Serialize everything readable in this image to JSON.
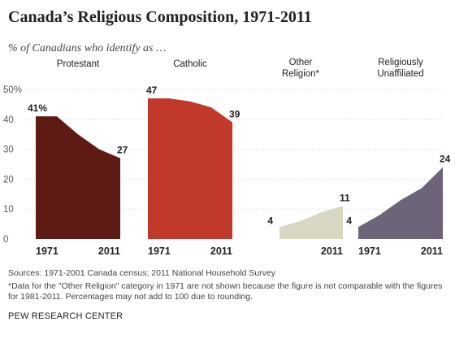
{
  "title": "Canada’s Religious Composition, 1971-2011",
  "subtitle": "% of Canadians who identify as …",
  "chart_data": {
    "type": "area",
    "y_axis": {
      "ylim": [
        0,
        50
      ],
      "tick_labels": [
        "50%",
        "40",
        "30",
        "20",
        "10",
        "0"
      ],
      "tick_values": [
        50,
        40,
        30,
        20,
        10,
        0
      ]
    },
    "x": [
      1971,
      1981,
      1991,
      2001,
      2011
    ],
    "panels": [
      {
        "label": "Protestant",
        "label_lines": [
          "Protestant"
        ],
        "x": [
          1971,
          1981,
          1991,
          2001,
          2011
        ],
        "values": [
          41,
          41,
          35,
          30,
          27
        ],
        "color": "#5e1a14",
        "start_label": "41%",
        "end_label": "27",
        "x_start_label": "1971",
        "x_end_label": "2011"
      },
      {
        "label": "Catholic",
        "label_lines": [
          "Catholic"
        ],
        "x": [
          1971,
          1981,
          1991,
          2001,
          2011
        ],
        "values": [
          47,
          47,
          46,
          44,
          39
        ],
        "color": "#c0392b",
        "start_label": "47",
        "end_label": "39",
        "x_start_label": "1971",
        "x_end_label": "2011"
      },
      {
        "label": "Other Religion*",
        "label_lines": [
          "Other",
          "Religion*"
        ],
        "x": [
          1981,
          1991,
          2001,
          2011
        ],
        "values": [
          4,
          6,
          9,
          11
        ],
        "color": "#d9d6c3",
        "start_label": "4",
        "end_label": "11",
        "x_start_label": "",
        "x_end_label": "2011"
      },
      {
        "label": "Religiously Unaffiliated",
        "label_lines": [
          "Religiously",
          "Unaffiliated"
        ],
        "x": [
          1971,
          1981,
          1991,
          2001,
          2011
        ],
        "values": [
          4,
          8,
          13,
          17,
          24
        ],
        "color": "#6e6479",
        "start_label": "4",
        "end_label": "24",
        "x_start_label": "1971",
        "x_end_label": "2011"
      }
    ]
  },
  "footer": {
    "sources": "Sources: 1971-2001 Canada census; 2011 National Household Survey",
    "note": "*Data for the \"Other Religion\" category in 1971 are not shown because the figure is not comparable with the figures for 1981-2011. Percentages may not add to 100 due to rounding.",
    "org": "PEW RESEARCH CENTER"
  }
}
